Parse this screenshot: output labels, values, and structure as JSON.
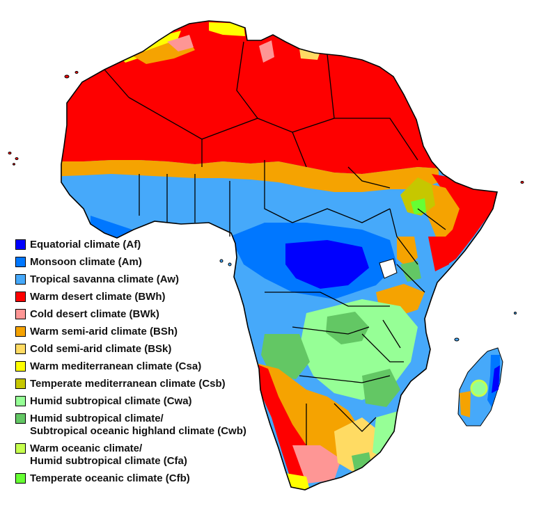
{
  "legend": {
    "items": [
      {
        "label": "Equatorial climate (Af)",
        "color": "#0000fe"
      },
      {
        "label": "Monsoon climate (Am)",
        "color": "#0077ff"
      },
      {
        "label": "Tropical savanna climate (Aw)",
        "color": "#46a9fa"
      },
      {
        "label": "Warm desert climate (BWh)",
        "color": "#fe0000"
      },
      {
        "label": "Cold desert climate (BWk)",
        "color": "#fe9695"
      },
      {
        "label": "Warm semi-arid climate (BSh)",
        "color": "#f5a301"
      },
      {
        "label": "Cold semi-arid climate (BSk)",
        "color": "#ffdb63"
      },
      {
        "label": "Warm mediterranean climate (Csa)",
        "color": "#ffff00"
      },
      {
        "label": "Temperate mediterranean climate (Csb)",
        "color": "#c6c700"
      },
      {
        "label": "Humid subtropical climate (Cwa)",
        "color": "#96ff96"
      },
      {
        "label": "Humid subtropical climate/\nSubtropical oceanic highland climate (Cwb)",
        "color": "#63c764"
      },
      {
        "label": "Warm oceanic climate/\nHumid subtropical climate (Cfa)",
        "color": "#c6ff4e"
      },
      {
        "label": "Temperate oceanic climate (Cfb)",
        "color": "#66ff33"
      }
    ]
  },
  "icons": {
    "map": "africa-climate-map"
  }
}
